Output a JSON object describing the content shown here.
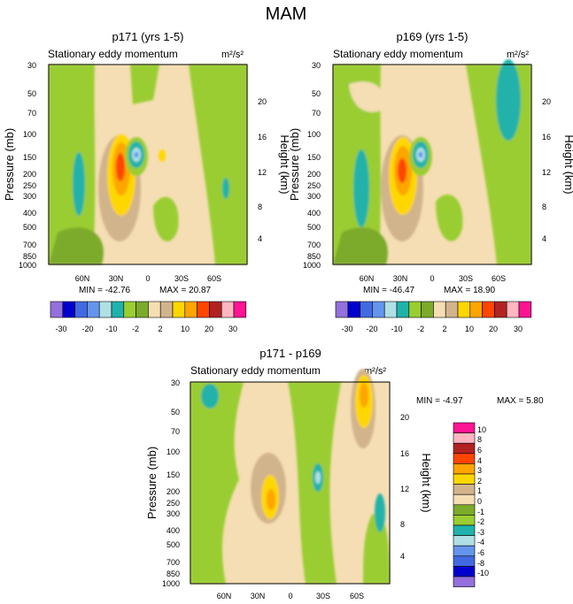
{
  "page_title": "MAM",
  "chart_data": [
    {
      "type": "heatmap",
      "id": "p1",
      "title": "p171 (yrs 1-5)",
      "subtitle_left": "Stationary eddy momentum",
      "units": "m²/s²",
      "xlabel": "",
      "ylabel": "Pressure (mb)",
      "ylabel_right": "Height (km)",
      "x_ticks": [
        "60N",
        "30N",
        "0",
        "30S",
        "60S"
      ],
      "y_ticks": [
        "30",
        "50",
        "70",
        "100",
        "150",
        "200",
        "250",
        "300",
        "400",
        "500",
        "700",
        "850",
        "1000"
      ],
      "y_right_ticks": [
        "20",
        "16",
        "12",
        "8",
        "4"
      ],
      "ylim": [
        1000,
        30
      ],
      "min_label": "MIN = -42.76",
      "max_label": "MAX =  20.87",
      "min": -42.76,
      "max": 20.87,
      "features": [
        {
          "lat": 25,
          "p": 200,
          "value": 15
        },
        {
          "lat": 12,
          "p": 150,
          "value": -12
        },
        {
          "lat": 62,
          "p": 220,
          "value": -4
        },
        {
          "lat": -65,
          "p": 220,
          "value": -3
        }
      ]
    },
    {
      "type": "heatmap",
      "id": "p2",
      "title": "p169 (yrs 1-5)",
      "subtitle_left": "Stationary eddy momentum",
      "units": "m²/s²",
      "xlabel": "",
      "ylabel": "Pressure (mb)",
      "ylabel_right": "Height (km)",
      "x_ticks": [
        "60N",
        "30N",
        "0",
        "30S",
        "60S"
      ],
      "y_ticks": [
        "30",
        "50",
        "70",
        "100",
        "150",
        "200",
        "250",
        "300",
        "400",
        "500",
        "700",
        "850",
        "1000"
      ],
      "y_right_ticks": [
        "20",
        "16",
        "12",
        "8",
        "4"
      ],
      "ylim": [
        1000,
        30
      ],
      "min_label": "MIN = -46.47",
      "max_label": "MAX =  18.90",
      "min": -46.47,
      "max": 18.9,
      "features": [
        {
          "lat": 24,
          "p": 200,
          "value": 14
        },
        {
          "lat": 12,
          "p": 150,
          "value": -12
        },
        {
          "lat": 63,
          "p": 220,
          "value": -5
        },
        {
          "lat": -70,
          "p": 45,
          "value": -3
        }
      ]
    },
    {
      "type": "heatmap",
      "id": "p3",
      "title": "p171 - p169",
      "subtitle_left": "Stationary eddy momentum",
      "units": "m²/s²",
      "xlabel": "",
      "ylabel": "Pressure (mb)",
      "ylabel_right": "Height (km)",
      "x_ticks": [
        "60N",
        "30N",
        "0",
        "30S",
        "60S"
      ],
      "y_ticks": [
        "30",
        "50",
        "70",
        "100",
        "150",
        "200",
        "250",
        "300",
        "400",
        "500",
        "700",
        "850",
        "1000"
      ],
      "y_right_ticks": [
        "20",
        "16",
        "12",
        "8",
        "4"
      ],
      "ylim": [
        1000,
        30
      ],
      "min_label": "MIN =  -4.97",
      "max_label": "MAX =   5.80",
      "min": -4.97,
      "max": 5.8,
      "features": [
        {
          "lat": 26,
          "p": 210,
          "value": 3
        },
        {
          "lat": -23,
          "p": 160,
          "value": -3
        },
        {
          "lat": -65,
          "p": 40,
          "value": 4
        },
        {
          "lat": -80,
          "p": 270,
          "value": -3
        }
      ]
    }
  ],
  "colorbar_horizontal": {
    "labels": [
      "-30",
      "-20",
      "-10",
      "-2",
      "2",
      "10",
      "20",
      "30"
    ],
    "colors": [
      "#9370db",
      "#0000cd",
      "#4169e1",
      "#6495ed",
      "#b0e0e6",
      "#20b2aa",
      "#9acd32",
      "#7caa2a",
      "#f5deb3",
      "#d2b48c",
      "#ffd700",
      "#ffa500",
      "#ff4500",
      "#b22222",
      "#ffb6c1",
      "#ff1493"
    ]
  },
  "colorbar_vertical": {
    "labels": [
      "10",
      "8",
      "6",
      "4",
      "3",
      "2",
      "1",
      "0",
      "-1",
      "-2",
      "-3",
      "-4",
      "-6",
      "-8",
      "-10"
    ],
    "colors": [
      "#ff1493",
      "#ffb6c1",
      "#b22222",
      "#ff4500",
      "#ffa500",
      "#ffd700",
      "#d2b48c",
      "#f5deb3",
      "#7caa2a",
      "#9acd32",
      "#20b2aa",
      "#b0e0e6",
      "#6495ed",
      "#4169e1",
      "#0000cd",
      "#9370db"
    ]
  }
}
